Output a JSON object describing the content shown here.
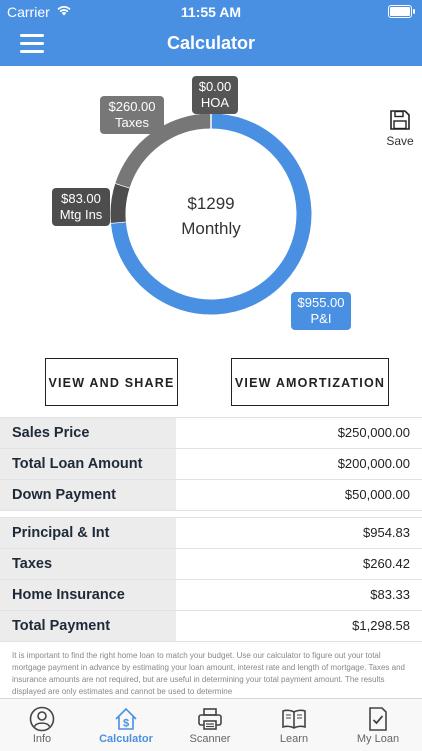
{
  "status_bar": {
    "carrier": "Carrier",
    "time": "11:55 AM"
  },
  "nav": {
    "title": "Calculator",
    "menu_icon": "hamburger-icon"
  },
  "chart_data": {
    "type": "pie",
    "donut": true,
    "center_amount": "$1299",
    "center_label": "Monthly",
    "slices": [
      {
        "name": "P&I",
        "label": "$955.00",
        "value": 955.0,
        "color": "#4a90e2"
      },
      {
        "name": "Mtg Ins",
        "label": "$83.00",
        "value": 83.0,
        "color": "#4d4d4d"
      },
      {
        "name": "Taxes",
        "label": "$260.00",
        "value": 260.0,
        "color": "#777777"
      },
      {
        "name": "HOA",
        "label": "$0.00",
        "value": 0.0,
        "color": "#555555"
      }
    ]
  },
  "save": {
    "label": "Save",
    "icon": "floppy-disk-icon"
  },
  "buttons": {
    "share": "VIEW AND SHARE",
    "amortization": "VIEW AMORTIZATION"
  },
  "loan_table": [
    {
      "label": "Sales Price",
      "value": "$250,000.00"
    },
    {
      "label": "Total Loan Amount",
      "value": "$200,000.00"
    },
    {
      "label": "Down Payment",
      "value": "$50,000.00"
    }
  ],
  "payment_table": [
    {
      "label": "Principal & Int",
      "value": "$954.83"
    },
    {
      "label": "Taxes",
      "value": "$260.42"
    },
    {
      "label": "Home Insurance",
      "value": "$83.33"
    },
    {
      "label": "Total Payment",
      "value": "$1,298.58"
    }
  ],
  "disclaimer": "It is important to find the right home loan to match your budget. Use our calculator to figure out your total mortgage payment in advance by estimating your loan amount, interest rate and length of mortgage. Taxes and insurance amounts are not required, but are useful in determining your total payment amount. The results displayed are only estimates and cannot be used to determine",
  "tabs": [
    {
      "label": "Info",
      "icon": "user-info-icon",
      "active": false
    },
    {
      "label": "Calculator",
      "icon": "house-dollar-icon",
      "active": true
    },
    {
      "label": "Scanner",
      "icon": "printer-icon",
      "active": false
    },
    {
      "label": "Learn",
      "icon": "book-icon",
      "active": false
    },
    {
      "label": "My Loan",
      "icon": "document-check-icon",
      "active": false
    }
  ],
  "colors": {
    "accent": "#4a90e2",
    "label_bg": "#ececec"
  }
}
